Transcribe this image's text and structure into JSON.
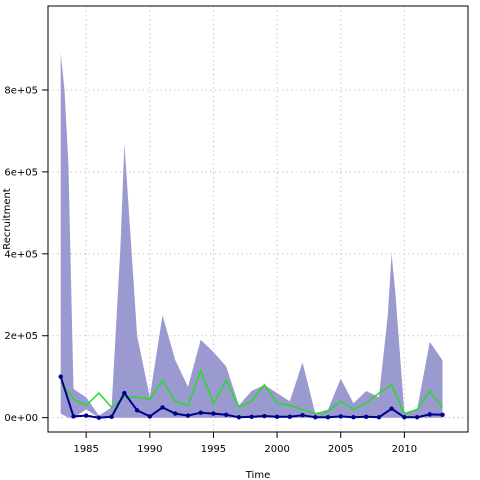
{
  "chart_data": {
    "type": "line",
    "title": "",
    "xlabel": "Time",
    "ylabel": "Recruitment",
    "xlim": [
      1982.0,
      2015.0
    ],
    "ylim": [
      -35000,
      1005000
    ],
    "xticks": [
      1985,
      1990,
      1995,
      2000,
      2005,
      2010
    ],
    "xtick_labels": [
      "1985",
      "1990",
      "1995",
      "2000",
      "2005",
      "2010"
    ],
    "yticks": [
      0,
      200000,
      400000,
      600000,
      800000
    ],
    "ytick_labels": [
      "0e+00",
      "2e+05",
      "4e+05",
      "6e+05",
      "8e+05"
    ],
    "grid": true,
    "legend": "none",
    "colors": {
      "band": "#9a9ad0",
      "estimate": "#00008b",
      "comparison": "#22dd22",
      "grid": "#c8c8c8",
      "frame": "#000000"
    },
    "x": [
      1983,
      1984,
      1985,
      1986,
      1987,
      1988,
      1989,
      1990,
      1991,
      1992,
      1993,
      1994,
      1995,
      1996,
      1997,
      1998,
      1999,
      2000,
      2001,
      2002,
      2003,
      2004,
      2005,
      2006,
      2007,
      2008,
      2009,
      2010,
      2011,
      2012,
      2013
    ],
    "series": [
      {
        "role": "interval",
        "x": [
          1983,
          1983.3,
          1983.6,
          1984,
          1985,
          1986,
          1987,
          1987.7,
          1988,
          1988.3,
          1989,
          1990,
          1991,
          1992,
          1993,
          1994,
          1995,
          1996,
          1997,
          1998,
          1999,
          2000,
          2001,
          2002,
          2003,
          2004,
          2005,
          2006,
          2007,
          2008,
          2008.7,
          2009,
          2009.3,
          2010,
          2011,
          2012,
          2013
        ],
        "upper": [
          890000,
          800000,
          620000,
          70000,
          50000,
          5000,
          25000,
          420000,
          670000,
          530000,
          200000,
          50000,
          250000,
          140000,
          75000,
          190000,
          160000,
          125000,
          30000,
          65000,
          80000,
          60000,
          40000,
          135000,
          10000,
          20000,
          95000,
          35000,
          65000,
          50000,
          250000,
          400000,
          300000,
          10000,
          20000,
          185000,
          140000
        ],
        "lower": [
          10000,
          5000,
          0,
          0,
          20000,
          0,
          0,
          0,
          0,
          0,
          0,
          0,
          0,
          0,
          0,
          0,
          0,
          0,
          0,
          0,
          0,
          0,
          0,
          0,
          0,
          0,
          0,
          0,
          0,
          0,
          0,
          0,
          0,
          0,
          0,
          0,
          0
        ]
      },
      {
        "role": "estimate",
        "values": [
          100000,
          3000,
          5000,
          0,
          2000,
          60000,
          18000,
          3000,
          25000,
          10000,
          5000,
          12000,
          10000,
          7000,
          1000,
          2000,
          4000,
          2000,
          2000,
          6000,
          1000,
          1000,
          3000,
          1000,
          2000,
          1000,
          22000,
          1000,
          1000,
          8000,
          7000
        ]
      },
      {
        "role": "comparison",
        "values": [
          85000,
          45000,
          30000,
          60000,
          25000,
          50000,
          50000,
          45000,
          90000,
          40000,
          30000,
          115000,
          35000,
          90000,
          25000,
          40000,
          80000,
          35000,
          30000,
          20000,
          10000,
          15000,
          40000,
          20000,
          35000,
          60000,
          80000,
          10000,
          20000,
          65000,
          25000
        ]
      }
    ]
  }
}
